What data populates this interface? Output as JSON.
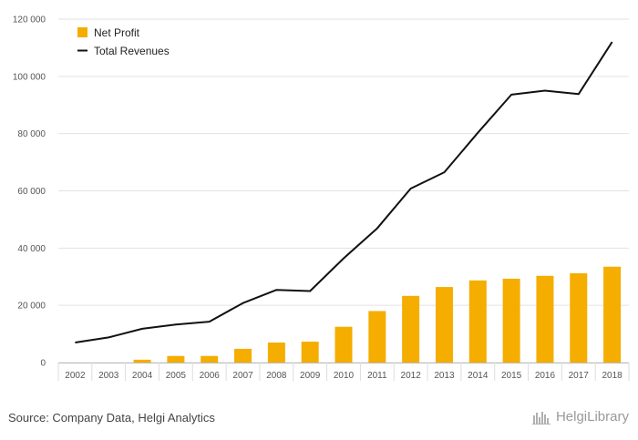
{
  "chart_data": {
    "type": "bar",
    "categories": [
      "2002",
      "2003",
      "2004",
      "2005",
      "2006",
      "2007",
      "2008",
      "2009",
      "2010",
      "2011",
      "2012",
      "2013",
      "2014",
      "2015",
      "2016",
      "2017",
      "2018"
    ],
    "series": [
      {
        "name": "Net Profit",
        "kind": "bar",
        "color": "#f5ad00",
        "values": [
          0,
          0,
          1000,
          2300,
          2300,
          4800,
          7000,
          7300,
          12500,
          18000,
          23300,
          26400,
          28700,
          29300,
          30300,
          31200,
          33500
        ]
      },
      {
        "name": "Total Revenues",
        "kind": "line",
        "color": "#111111",
        "values": [
          7000,
          8800,
          11800,
          13300,
          14300,
          20800,
          25400,
          25000,
          36400,
          46900,
          60800,
          66500,
          80300,
          93600,
          95000,
          93800,
          112000
        ]
      }
    ],
    "y_ticks": [
      "0",
      "20 000",
      "40 000",
      "60 000",
      "80 000",
      "100 000",
      "120 000"
    ],
    "ylim": [
      0,
      120000
    ],
    "grid": "horizontal",
    "legend_position": "top-left"
  },
  "footer": {
    "source": "Source: Company Data, Helgi Analytics",
    "brand": "HelgiLibrary"
  }
}
